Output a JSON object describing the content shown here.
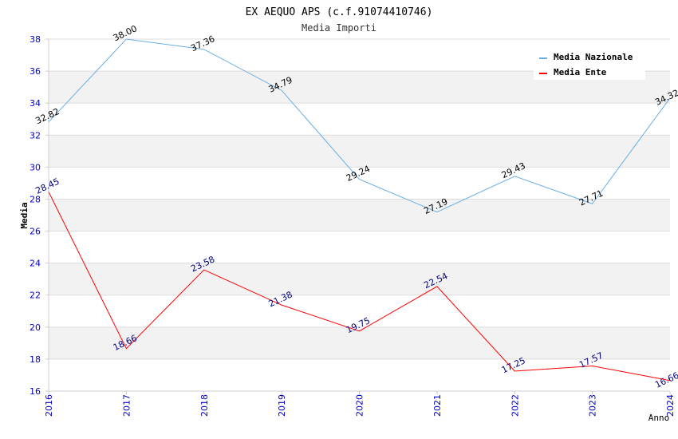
{
  "chart_data": {
    "type": "line",
    "title": "EX AEQUO APS (c.f.91074410746)",
    "subtitle": "Media Importi",
    "xlabel": "Anno",
    "ylabel": "Media",
    "categories": [
      "2016",
      "2017",
      "2018",
      "2019",
      "2020",
      "2021",
      "2022",
      "2023",
      "2024"
    ],
    "ylim": [
      16,
      38
    ],
    "yticks": [
      16,
      18,
      20,
      22,
      24,
      26,
      28,
      30,
      32,
      34,
      36,
      38
    ],
    "grid": true,
    "legend_position": "top-right",
    "series": [
      {
        "name": "Media Nazionale",
        "color": "#6aaee6",
        "label_color": "#000000",
        "values": [
          32.82,
          38.0,
          37.36,
          34.79,
          29.24,
          27.19,
          29.43,
          27.71,
          34.32
        ],
        "labels": [
          "32.82",
          "38.00",
          "37.36",
          "34.79",
          "29.24",
          "27.19",
          "29.43",
          "27.71",
          "34.32"
        ]
      },
      {
        "name": "Media Ente",
        "color": "#ff0000",
        "label_color": "#000080",
        "values": [
          28.45,
          18.66,
          23.58,
          21.38,
          19.75,
          22.54,
          17.25,
          17.57,
          16.66
        ],
        "labels": [
          "28.45",
          "18.66",
          "23.58",
          "21.38",
          "19.75",
          "22.54",
          "17.25",
          "17.57",
          "16.66"
        ]
      }
    ],
    "colors": {
      "tick_label": "#0000cc",
      "band": "#f2f2f2",
      "gridline": "#dcdcdc",
      "axis": "#cccccc",
      "title": "#000000",
      "subtitle": "#333333"
    }
  }
}
